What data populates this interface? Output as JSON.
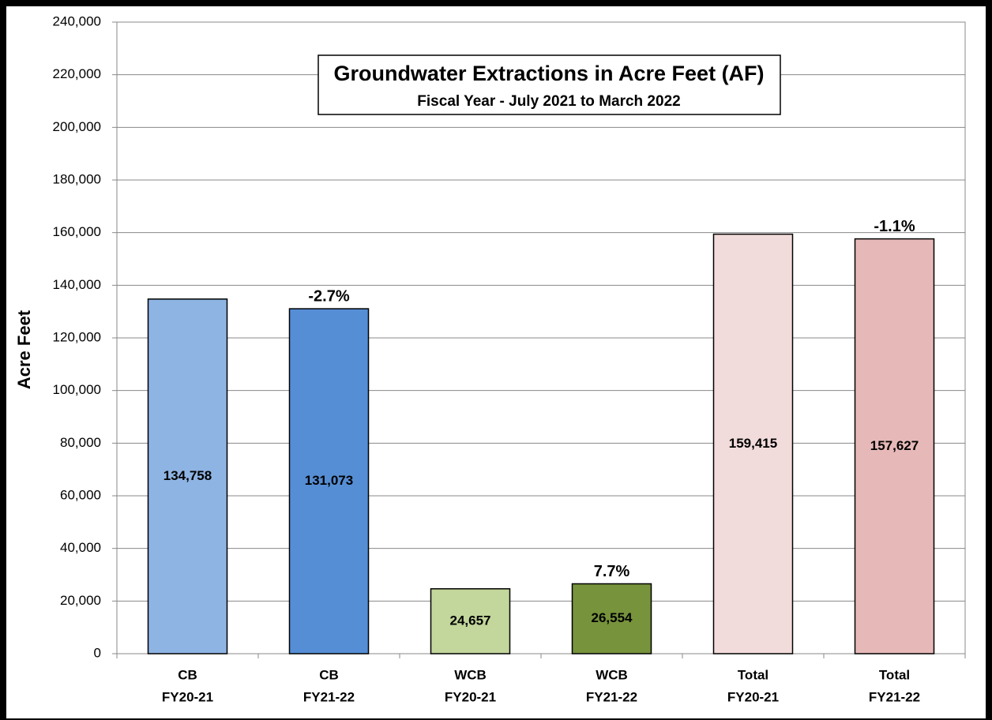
{
  "chart_data": {
    "type": "bar",
    "title": "Groundwater Extractions in Acre Feet (AF)",
    "subtitle": "Fiscal Year - July 2021 to March 2022",
    "y_label": "Acre Feet",
    "categories": [
      [
        "CB",
        "FY20-21"
      ],
      [
        "CB",
        "FY21-22"
      ],
      [
        "WCB",
        "FY20-21"
      ],
      [
        "WCB",
        "FY21-22"
      ],
      [
        "Total",
        "FY20-21"
      ],
      [
        "Total",
        "FY21-22"
      ]
    ],
    "values": [
      134758,
      131073,
      24657,
      26554,
      159415,
      157627
    ],
    "value_labels": [
      "134,758",
      "131,073",
      "24,657",
      "26,554",
      "159,415",
      "157,627"
    ],
    "change_labels": [
      null,
      "-2.7%",
      null,
      "7.7%",
      null,
      "-1.1%"
    ],
    "colors": [
      "#8eb4e3",
      "#558ed5",
      "#c3d69b",
      "#77933c",
      "#f2dcdb",
      "#e6b9b8"
    ],
    "ylim": [
      0,
      240000
    ],
    "yticks": [
      0,
      {
        "value": 20000,
        "label": "20,000"
      },
      {
        "value": 40000,
        "label": "40,000"
      },
      {
        "value": 60000,
        "label": "60,000"
      },
      {
        "value": 80000,
        "label": "80,000"
      },
      {
        "value": 100000,
        "label": "100,000"
      },
      {
        "value": 120000,
        "label": "120,000"
      },
      {
        "value": 140000,
        "label": "140,000"
      },
      {
        "value": 160000,
        "label": "160,000"
      },
      {
        "value": 180000,
        "label": "180,000"
      },
      {
        "value": 200000,
        "label": "200,000"
      },
      {
        "value": 220000,
        "label": "220,000"
      },
      {
        "value": 240000,
        "label": "240,000"
      }
    ],
    "grid": true
  }
}
